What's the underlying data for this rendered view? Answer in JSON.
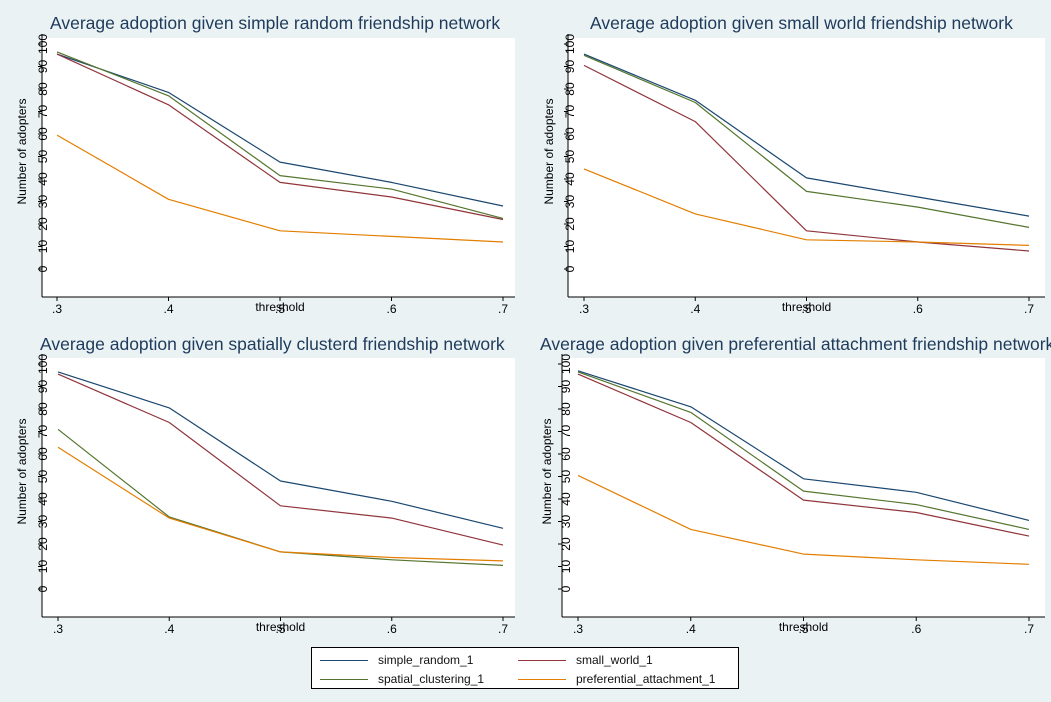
{
  "colors": {
    "simple_random_1": "#1a476f",
    "small_world_1": "#90353b",
    "spatial_clustering_1": "#55752f",
    "preferential_attachment_1": "#e37e00",
    "title": "#1e3a5c",
    "background": "#eaf2f3",
    "plot_area": "#ffffff"
  },
  "legend": {
    "placement": "bottom-center",
    "entries": [
      {
        "key": "simple_random_1",
        "label": "simple_random_1"
      },
      {
        "key": "small_world_1",
        "label": "small_world_1"
      },
      {
        "key": "spatial_clustering_1",
        "label": "spatial_clustering_1"
      },
      {
        "key": "preferential_attachment_1",
        "label": "preferential_attachment_1"
      }
    ]
  },
  "chart_data": [
    {
      "type": "line",
      "title": "Average adoption given simple random friendship network",
      "xlabel": "threshold",
      "ylabel": "Number of adopters",
      "x": [
        0.3,
        0.4,
        0.5,
        0.6,
        0.7
      ],
      "x_tick_labels": [
        ".3",
        ".4",
        ".5",
        ".6",
        ".7"
      ],
      "xlim": [
        0.3,
        0.7
      ],
      "ylim": [
        0,
        100
      ],
      "y_ticks": [
        0,
        10,
        20,
        30,
        40,
        50,
        60,
        70,
        80,
        90,
        100
      ],
      "grid": false,
      "series": [
        {
          "name": "simple_random_1",
          "values": [
            95.5,
            78.5,
            47.5,
            38.5,
            28
          ]
        },
        {
          "name": "small_world_1",
          "values": [
            95.5,
            73,
            38.5,
            32,
            22
          ]
        },
        {
          "name": "spatial_clustering_1",
          "values": [
            96.5,
            77,
            41.5,
            35.5,
            22.5
          ]
        },
        {
          "name": "preferential_attachment_1",
          "values": [
            59.5,
            31,
            17,
            14.5,
            12
          ]
        }
      ]
    },
    {
      "type": "line",
      "title": "Average adoption given small world friendship network",
      "xlabel": "threshold",
      "ylabel": "Number of adopters",
      "x": [
        0.3,
        0.4,
        0.5,
        0.6,
        0.7
      ],
      "x_tick_labels": [
        ".3",
        ".4",
        ".5",
        ".6",
        ".7"
      ],
      "xlim": [
        0.3,
        0.7
      ],
      "ylim": [
        0,
        100
      ],
      "y_ticks": [
        0,
        10,
        20,
        30,
        40,
        50,
        60,
        70,
        80,
        90,
        100
      ],
      "grid": false,
      "series": [
        {
          "name": "simple_random_1",
          "values": [
            95.5,
            75,
            40.5,
            32,
            23.5
          ]
        },
        {
          "name": "small_world_1",
          "values": [
            90.5,
            65.5,
            17,
            12,
            8
          ]
        },
        {
          "name": "spatial_clustering_1",
          "values": [
            95,
            74,
            34.5,
            27.5,
            18.5
          ]
        },
        {
          "name": "preferential_attachment_1",
          "values": [
            44.5,
            24.5,
            13,
            12,
            10.5
          ]
        }
      ]
    },
    {
      "type": "line",
      "title": "Average adoption given spatially clusterd friendship network",
      "xlabel": "threshold",
      "ylabel": "Number of adopters",
      "x": [
        0.3,
        0.4,
        0.5,
        0.6,
        0.7
      ],
      "x_tick_labels": [
        ".3",
        ".4",
        ".5",
        ".6",
        ".7"
      ],
      "xlim": [
        0.3,
        0.7
      ],
      "ylim": [
        0,
        100
      ],
      "y_ticks": [
        0,
        10,
        20,
        30,
        40,
        50,
        60,
        70,
        80,
        90,
        100
      ],
      "grid": false,
      "series": [
        {
          "name": "simple_random_1",
          "values": [
            96.5,
            80.5,
            48,
            39,
            27
          ]
        },
        {
          "name": "small_world_1",
          "values": [
            95.5,
            74,
            37,
            31.5,
            19.5
          ]
        },
        {
          "name": "spatial_clustering_1",
          "values": [
            71,
            32,
            16.5,
            13,
            10.5
          ]
        },
        {
          "name": "preferential_attachment_1",
          "values": [
            63,
            31.5,
            16.5,
            14,
            12.5
          ]
        }
      ]
    },
    {
      "type": "line",
      "title": "Average adoption given preferential attachment friendship network",
      "xlabel": "threshold",
      "ylabel": "Number of adopters",
      "x": [
        0.3,
        0.4,
        0.5,
        0.6,
        0.7
      ],
      "x_tick_labels": [
        ".3",
        ".4",
        ".5",
        ".6",
        ".7"
      ],
      "xlim": [
        0.3,
        0.7
      ],
      "ylim": [
        0,
        100
      ],
      "y_ticks": [
        0,
        10,
        20,
        30,
        40,
        50,
        60,
        70,
        80,
        90,
        100
      ],
      "grid": false,
      "series": [
        {
          "name": "simple_random_1",
          "values": [
            97,
            81,
            49,
            43,
            30.5
          ]
        },
        {
          "name": "small_world_1",
          "values": [
            95.5,
            74,
            39.5,
            34,
            23.5
          ]
        },
        {
          "name": "spatial_clustering_1",
          "values": [
            96.5,
            78.5,
            43.5,
            37.5,
            26.5
          ]
        },
        {
          "name": "preferential_attachment_1",
          "values": [
            50.5,
            26.5,
            15.5,
            13,
            11
          ]
        }
      ]
    }
  ]
}
